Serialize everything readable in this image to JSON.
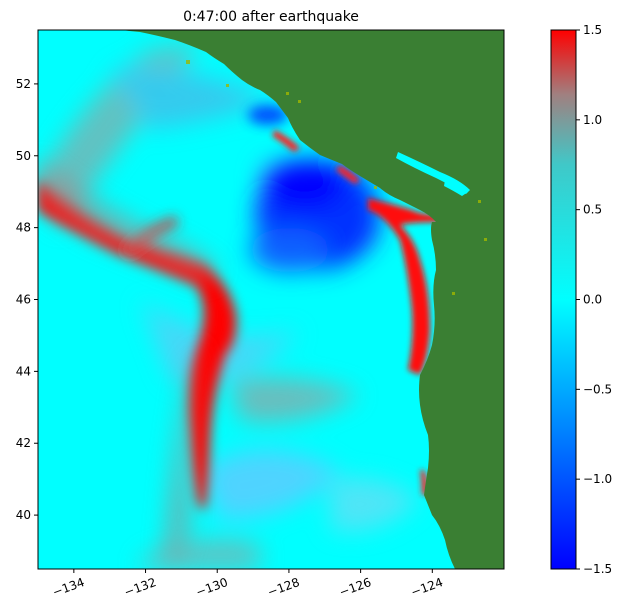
{
  "title": "0:47:00 after earthquake",
  "map": {
    "lon_range": [
      -135,
      -122
    ],
    "lat_range": [
      38.5,
      53.5
    ],
    "x_ticks": [
      "−134",
      "−132",
      "−130",
      "−128",
      "−126",
      "−124"
    ],
    "x_tick_values": [
      -134,
      -132,
      -130,
      -128,
      -126,
      -124
    ],
    "y_ticks": [
      "40",
      "42",
      "44",
      "46",
      "48",
      "50",
      "52"
    ],
    "y_tick_values": [
      40,
      42,
      44,
      46,
      48,
      50,
      52
    ],
    "land_color": "#3a7f33",
    "ocean_color": "#00ffff"
  },
  "colorbar": {
    "range": [
      -1.5,
      1.5
    ],
    "ticks": [
      "1.5",
      "1.0",
      "0.5",
      "0.0",
      "−0.5",
      "−1.0",
      "−1.5"
    ],
    "tick_values": [
      1.5,
      1.0,
      0.5,
      0.0,
      -0.5,
      -1.0,
      -1.5
    ],
    "colors": [
      "#0000ff",
      "#00ffff",
      "#ff0000"
    ]
  }
}
